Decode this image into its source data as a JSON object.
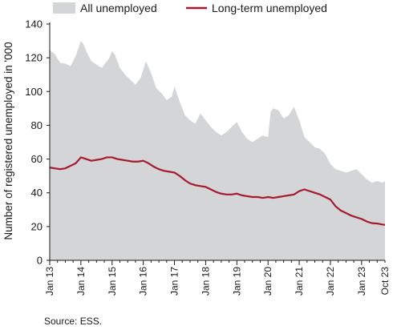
{
  "chart_data": {
    "type": "area",
    "ylabel": "Number of registered unemployed in '000",
    "ylim": [
      0,
      140
    ],
    "yticks": [
      0,
      20,
      40,
      60,
      80,
      100,
      120,
      140
    ],
    "x_tick_labels": [
      "Jan 13",
      "Jan 14",
      "Jan 15",
      "Jan 16",
      "Jan 17",
      "Jan 18",
      "Jan 19",
      "Jan 20",
      "Jan 21",
      "Jan 22",
      "Jan 23",
      "Oct 23"
    ],
    "x_tick_months": [
      0,
      12,
      24,
      36,
      48,
      60,
      72,
      84,
      96,
      108,
      120,
      129
    ],
    "grid": false,
    "legend_position": "top",
    "source": "Source: ESS.",
    "series": [
      {
        "name": "All unemployed",
        "style": "area",
        "color": "#d4d5d7",
        "points": [
          [
            0,
            124.5
          ],
          [
            2,
            122
          ],
          [
            4,
            117
          ],
          [
            6,
            116.5
          ],
          [
            8,
            115
          ],
          [
            10,
            121
          ],
          [
            12,
            130
          ],
          [
            13,
            128
          ],
          [
            14,
            124
          ],
          [
            16,
            118
          ],
          [
            18,
            116
          ],
          [
            20,
            114
          ],
          [
            21,
            116
          ],
          [
            23,
            120
          ],
          [
            24,
            124
          ],
          [
            25,
            122
          ],
          [
            27,
            114
          ],
          [
            29,
            110
          ],
          [
            31,
            107
          ],
          [
            33,
            104
          ],
          [
            35,
            108
          ],
          [
            37,
            118
          ],
          [
            39,
            111
          ],
          [
            41,
            102
          ],
          [
            43,
            99
          ],
          [
            45,
            95
          ],
          [
            47,
            97
          ],
          [
            48,
            103
          ],
          [
            50,
            94
          ],
          [
            52,
            86
          ],
          [
            54,
            83
          ],
          [
            56,
            81
          ],
          [
            58,
            87
          ],
          [
            60,
            83
          ],
          [
            62,
            79
          ],
          [
            64,
            76
          ],
          [
            66,
            74
          ],
          [
            68,
            76
          ],
          [
            70,
            79
          ],
          [
            72,
            82
          ],
          [
            74,
            76
          ],
          [
            76,
            72
          ],
          [
            78,
            70
          ],
          [
            80,
            72
          ],
          [
            82,
            74
          ],
          [
            84,
            73
          ],
          [
            85,
            88
          ],
          [
            86,
            90
          ],
          [
            88,
            89
          ],
          [
            90,
            84
          ],
          [
            92,
            86
          ],
          [
            94,
            91
          ],
          [
            96,
            83
          ],
          [
            98,
            73
          ],
          [
            100,
            70
          ],
          [
            102,
            67
          ],
          [
            104,
            66
          ],
          [
            106,
            63
          ],
          [
            108,
            57
          ],
          [
            110,
            54
          ],
          [
            112,
            53
          ],
          [
            114,
            52
          ],
          [
            116,
            53
          ],
          [
            118,
            54
          ],
          [
            120,
            51
          ],
          [
            122,
            48
          ],
          [
            124,
            46
          ],
          [
            126,
            47
          ],
          [
            128,
            46
          ],
          [
            129,
            47
          ]
        ]
      },
      {
        "name": "Long-term unemployed",
        "style": "line",
        "color": "#a6192e",
        "points": [
          [
            0,
            55
          ],
          [
            2,
            54.5
          ],
          [
            4,
            54
          ],
          [
            6,
            54.5
          ],
          [
            8,
            56
          ],
          [
            10,
            57.5
          ],
          [
            12,
            61
          ],
          [
            14,
            60
          ],
          [
            16,
            59
          ],
          [
            18,
            59.5
          ],
          [
            20,
            60
          ],
          [
            22,
            61
          ],
          [
            24,
            61
          ],
          [
            26,
            60
          ],
          [
            28,
            59.5
          ],
          [
            30,
            59
          ],
          [
            32,
            58.5
          ],
          [
            34,
            58.5
          ],
          [
            36,
            59
          ],
          [
            38,
            57.5
          ],
          [
            40,
            55.5
          ],
          [
            42,
            54
          ],
          [
            44,
            53
          ],
          [
            46,
            52.5
          ],
          [
            48,
            52
          ],
          [
            50,
            50
          ],
          [
            52,
            47.5
          ],
          [
            54,
            45.5
          ],
          [
            56,
            44.5
          ],
          [
            58,
            44
          ],
          [
            60,
            43.5
          ],
          [
            62,
            42
          ],
          [
            64,
            40.5
          ],
          [
            66,
            39.5
          ],
          [
            68,
            39
          ],
          [
            70,
            39
          ],
          [
            72,
            39.5
          ],
          [
            74,
            38.5
          ],
          [
            76,
            38
          ],
          [
            78,
            37.5
          ],
          [
            80,
            37.5
          ],
          [
            82,
            37
          ],
          [
            84,
            37.5
          ],
          [
            86,
            37
          ],
          [
            88,
            37.5
          ],
          [
            90,
            38
          ],
          [
            92,
            38.5
          ],
          [
            94,
            39
          ],
          [
            96,
            41
          ],
          [
            98,
            42
          ],
          [
            100,
            41
          ],
          [
            102,
            40
          ],
          [
            104,
            39
          ],
          [
            106,
            37.5
          ],
          [
            108,
            36
          ],
          [
            110,
            32
          ],
          [
            112,
            29.5
          ],
          [
            114,
            28
          ],
          [
            116,
            26.5
          ],
          [
            118,
            25.5
          ],
          [
            120,
            24.5
          ],
          [
            122,
            23
          ],
          [
            124,
            22
          ],
          [
            126,
            21.8
          ],
          [
            128,
            21.2
          ],
          [
            129,
            21
          ]
        ]
      }
    ]
  }
}
